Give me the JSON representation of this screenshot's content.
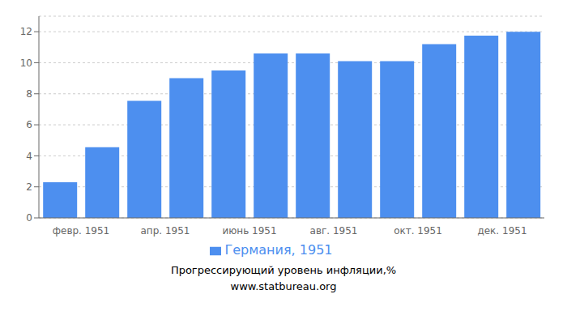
{
  "chart_data": {
    "type": "bar",
    "title": "Прогрессирующий уровень инфляции,%",
    "subtitle": "www.statbureau.org",
    "categories": [
      "февр. 1951",
      null,
      "апр. 1951",
      null,
      "июнь 1951",
      null,
      "авг. 1951",
      null,
      "окт. 1951",
      null,
      "дек. 1951",
      null
    ],
    "series": [
      {
        "name": "Германия, 1951",
        "color": "#4d8fef",
        "values": [
          2.3,
          4.55,
          7.55,
          9.0,
          9.5,
          10.6,
          10.6,
          10.1,
          10.1,
          11.2,
          11.75,
          12.0
        ]
      }
    ],
    "ylim": [
      0,
      13
    ],
    "yticks": [
      0,
      2,
      4,
      6,
      8,
      10,
      12
    ],
    "grid": true,
    "legend": "bottom"
  }
}
